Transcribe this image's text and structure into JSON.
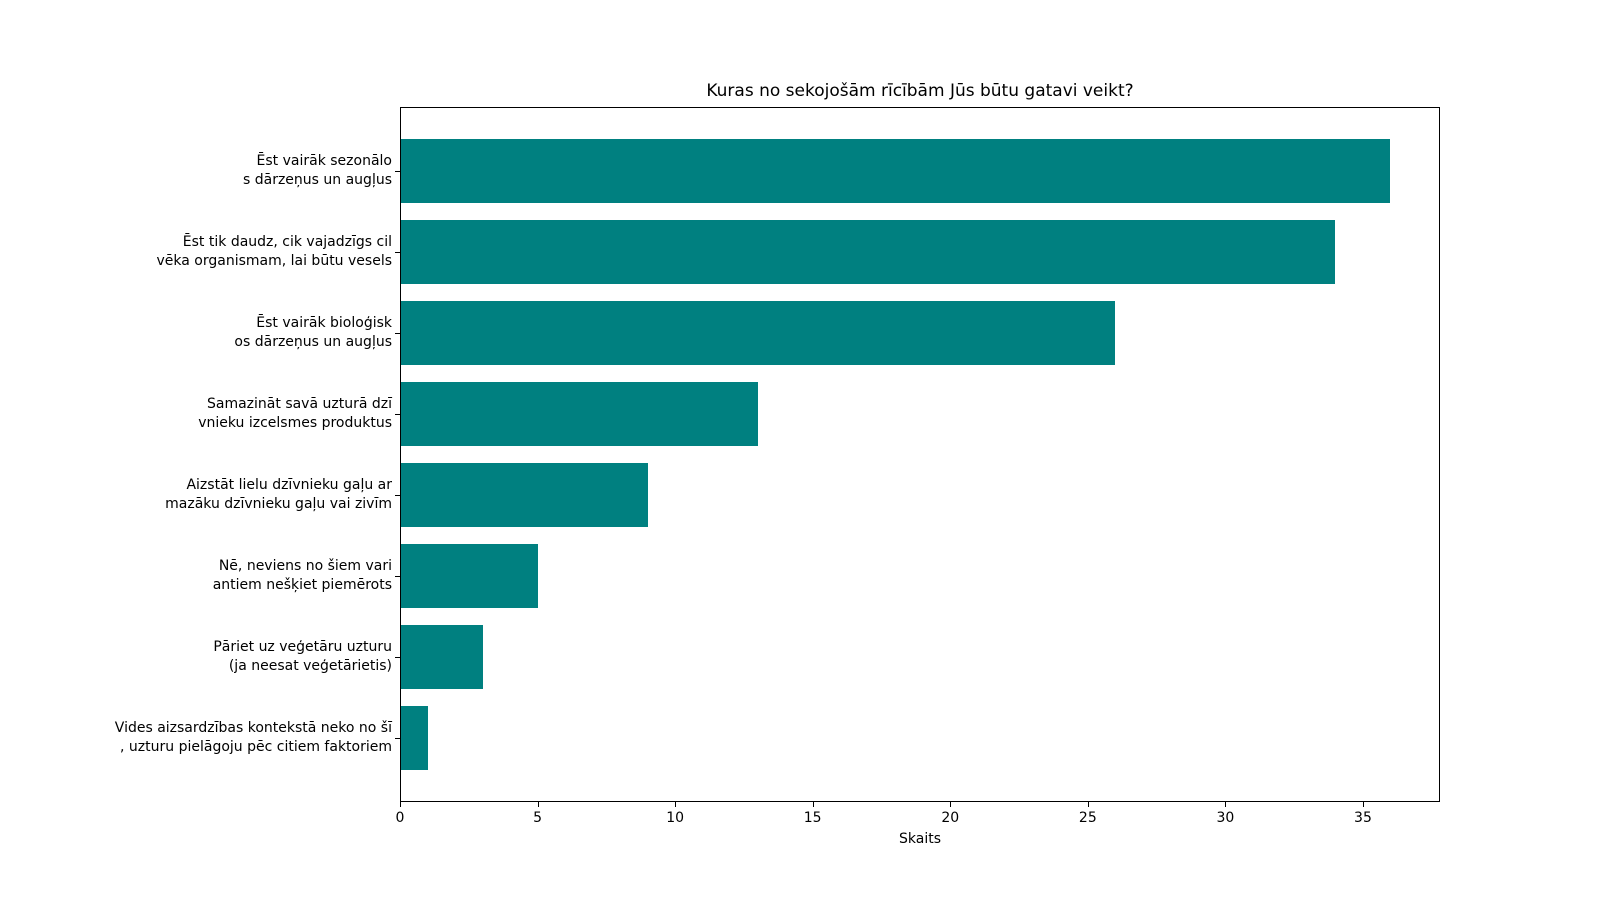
{
  "chart_data": {
    "type": "bar",
    "orientation": "horizontal",
    "title": "Kuras no sekojošām rīcībām Jūs būtu gatavi veikt?",
    "xlabel": "Skaits",
    "ylabel": "",
    "categories": [
      [
        "Ēst vairāk sezonālo",
        "s dārzeņus un augļus"
      ],
      [
        "Ēst tik daudz, cik vajadzīgs cil",
        "vēka organismam, lai būtu vesels"
      ],
      [
        "Ēst vairāk bioloģisk",
        "os dārzeņus un augļus"
      ],
      [
        "Samazināt savā uzturā dzī",
        "vnieku izcelsmes produktus"
      ],
      [
        "Aizstāt lielu dzīvnieku gaļu ar",
        "mazāku dzīvnieku gaļu vai zivīm"
      ],
      [
        "Nē, neviens no šiem vari",
        "antiem nešķiet piemērots"
      ],
      [
        "Pāriet uz veģetāru uzturu",
        "(ja neesat veģetārietis)"
      ],
      [
        "Vides aizsardzības kontekstā neko no šī",
        ", uzturu pielāgoju pēc citiem faktoriem"
      ]
    ],
    "values": [
      36,
      34,
      26,
      13,
      9,
      5,
      3,
      1
    ],
    "xticks": [
      0,
      5,
      10,
      15,
      20,
      25,
      30,
      35
    ],
    "xlim": [
      0,
      37.8
    ],
    "bar_color": "#008080",
    "axis_color": "#000000",
    "background_color": "#ffffff",
    "grid": false,
    "legend": null
  }
}
